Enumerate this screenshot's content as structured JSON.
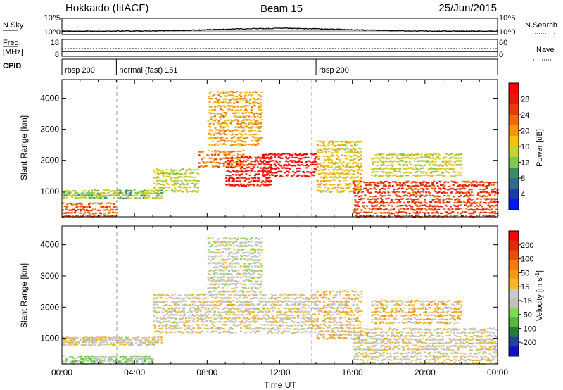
{
  "header": {
    "radar": "Hokkaido (fitACF)",
    "beam": "Beam 15",
    "date": "25/Jun/2015"
  },
  "noise_panel": {
    "left_label": "N.Sky",
    "right_label": "N.Search",
    "left_ticks": [
      "10^5",
      "10^0"
    ],
    "right_ticks": [
      "10^5",
      "10^0"
    ]
  },
  "freq_panel": {
    "left_label_top": "Freq.",
    "left_label_unit": "[MHz]",
    "left_ticks": [
      "18",
      "8"
    ],
    "right_label": "Nave",
    "right_ticks": [
      "60",
      "0"
    ]
  },
  "cpid_panel": {
    "label": "CPID",
    "segments": [
      "rbsp 200",
      "normal (fast) 151",
      "rbsp 200"
    ],
    "segment_start_hours": [
      0,
      3,
      14
    ]
  },
  "axes": {
    "x_ticks": [
      "00:00",
      "04:00",
      "08:00",
      "12:00",
      "16:00",
      "20:00",
      "00:00"
    ],
    "xlabel": "Time UT",
    "y_ticks": [
      "1000",
      "2000",
      "3000",
      "4000"
    ],
    "ylabel": "Slant Range [km]"
  },
  "colorbars": {
    "power": {
      "label": "Power [dB]",
      "ticks": [
        "28",
        "24",
        "20",
        "16",
        "12",
        "8",
        "4"
      ],
      "colors": [
        "#0018ff",
        "#1e3ca8",
        "#2f6e86",
        "#3e8c66",
        "#7ec850",
        "#c8d233",
        "#f5c20a",
        "#f49610",
        "#ee6d0a",
        "#e63b0a",
        "#e8160c",
        "#ff0000"
      ]
    },
    "velocity": {
      "label_main": "Velocity [m s",
      "label_exp": "-1",
      "label_close": "]",
      "ticks": [
        "200",
        "100",
        "50",
        "15",
        "-15",
        "-50",
        "-100",
        "-200"
      ],
      "colors": [
        "#1010c8",
        "#22429a",
        "#2b7a3a",
        "#55b83a",
        "#7ed956",
        "#bfbfbf",
        "#c9c9c9",
        "#f4b923",
        "#f59a12",
        "#f07c0a",
        "#e84f0a",
        "#e52a0a",
        "#ff0000"
      ]
    }
  },
  "chart_data": [
    {
      "type": "heatmap",
      "title": "Power",
      "xlabel": "Time UT",
      "ylabel": "Slant Range [km]",
      "xlim_hours": [
        0,
        24
      ],
      "ylim_km": [
        180,
        4600
      ],
      "colorbar_label": "Power [dB]",
      "colorbar_range": [
        0,
        30
      ],
      "echo_regions": [
        {
          "t0": 0.0,
          "t1": 3.0,
          "r0": 200,
          "r1": 700,
          "value": 22
        },
        {
          "t0": 0.0,
          "t1": 5.5,
          "r0": 800,
          "r1": 1100,
          "value": 12
        },
        {
          "t0": 5.0,
          "t1": 7.5,
          "r0": 1000,
          "r1": 1800,
          "value": 14
        },
        {
          "t0": 7.5,
          "t1": 10.0,
          "r0": 1800,
          "r1": 2400,
          "value": 20
        },
        {
          "t0": 9.0,
          "t1": 11.5,
          "r0": 1200,
          "r1": 2200,
          "value": 26
        },
        {
          "t0": 11.0,
          "t1": 14.0,
          "r0": 1500,
          "r1": 2300,
          "value": 28
        },
        {
          "t0": 8.0,
          "t1": 11.0,
          "r0": 2500,
          "r1": 4300,
          "value": 18
        },
        {
          "t0": 14.0,
          "t1": 16.5,
          "r0": 1000,
          "r1": 2700,
          "value": 16
        },
        {
          "t0": 16.0,
          "t1": 24.0,
          "r0": 200,
          "r1": 1400,
          "value": 24
        },
        {
          "t0": 17.0,
          "t1": 22.0,
          "r0": 1500,
          "r1": 2300,
          "value": 14
        }
      ]
    },
    {
      "type": "heatmap",
      "title": "Velocity",
      "xlabel": "Time UT",
      "ylabel": "Slant Range [km]",
      "xlim_hours": [
        0,
        24
      ],
      "ylim_km": [
        180,
        4600
      ],
      "colorbar_label": "Velocity [m s-1]",
      "colorbar_range": [
        -250,
        250
      ],
      "echo_regions": [
        {
          "t0": 0.0,
          "t1": 5.0,
          "r0": 200,
          "r1": 500,
          "value": -60
        },
        {
          "t0": 0.0,
          "t1": 5.5,
          "r0": 800,
          "r1": 1100,
          "value": 0
        },
        {
          "t0": 5.0,
          "t1": 14.0,
          "r0": 1200,
          "r1": 2500,
          "value": 0
        },
        {
          "t0": 8.0,
          "t1": 11.0,
          "r0": 2500,
          "r1": 4300,
          "value": -20
        },
        {
          "t0": 14.0,
          "t1": 16.5,
          "r0": 1000,
          "r1": 2600,
          "value": 30
        },
        {
          "t0": 16.0,
          "t1": 24.0,
          "r0": 200,
          "r1": 1400,
          "value": 0
        },
        {
          "t0": 17.0,
          "t1": 22.0,
          "r0": 1500,
          "r1": 2300,
          "value": 40
        }
      ]
    }
  ]
}
